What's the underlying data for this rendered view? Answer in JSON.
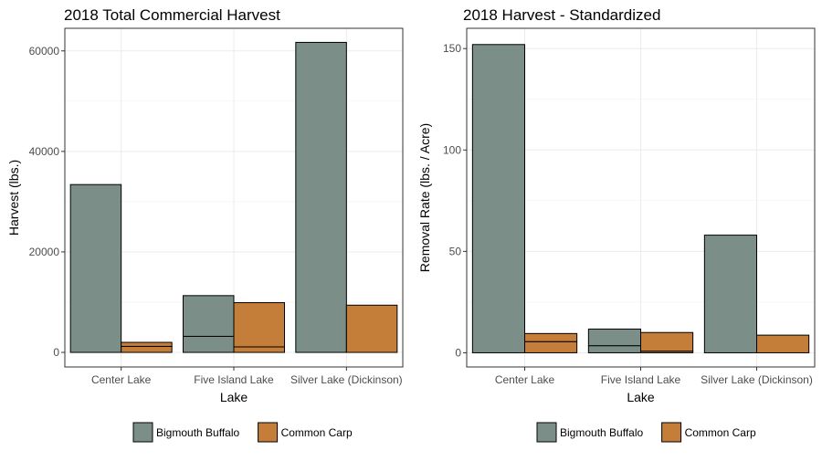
{
  "colors": {
    "bigmouth_buffalo": "#7b8f88",
    "common_carp": "#c47e3a",
    "grid": "#ebebeb",
    "frame": "#333333"
  },
  "chart_data": [
    {
      "type": "bar",
      "title": "2018 Total Commercial Harvest",
      "xlabel": "Lake",
      "ylabel": "Harvest (lbs.)",
      "categories": [
        "Center Lake",
        "Five Island Lake",
        "Silver Lake (Dickinson)"
      ],
      "ylim": [
        -2900,
        64500
      ],
      "yticks": [
        0,
        20000,
        40000,
        60000
      ],
      "ytick_labels": [
        "0",
        "20000",
        "40000",
        "60000"
      ],
      "series": [
        {
          "name": "Bigmouth Buffalo",
          "segments": [
            [
              33400
            ],
            [
              3200,
              8100
            ],
            [
              61700
            ]
          ]
        },
        {
          "name": "Common Carp",
          "segments": [
            [
              1200,
              800
            ],
            [
              1100,
              8800
            ],
            [
              9400
            ]
          ]
        }
      ],
      "legend": [
        "Bigmouth Buffalo",
        "Common Carp"
      ],
      "legend_position": "bottom",
      "grid": true
    },
    {
      "type": "bar",
      "title": "2018 Harvest - Standardized",
      "xlabel": "Lake",
      "ylabel": "Removal Rate (lbs. / Acre)",
      "categories": [
        "Center Lake",
        "Five Island Lake",
        "Silver Lake (Dickinson)"
      ],
      "ylim": [
        -7,
        160
      ],
      "yticks": [
        0,
        50,
        100,
        150
      ],
      "ytick_labels": [
        "0",
        "50",
        "100",
        "150"
      ],
      "series": [
        {
          "name": "Bigmouth Buffalo",
          "segments": [
            [
              152
            ],
            [
              3.5,
              8.2
            ],
            [
              58
            ]
          ]
        },
        {
          "name": "Common Carp",
          "segments": [
            [
              5.5,
              4
            ],
            [
              0.8,
              9.2
            ],
            [
              8.7
            ]
          ]
        }
      ],
      "legend": [
        "Bigmouth Buffalo",
        "Common Carp"
      ],
      "legend_position": "bottom",
      "grid": true
    }
  ]
}
